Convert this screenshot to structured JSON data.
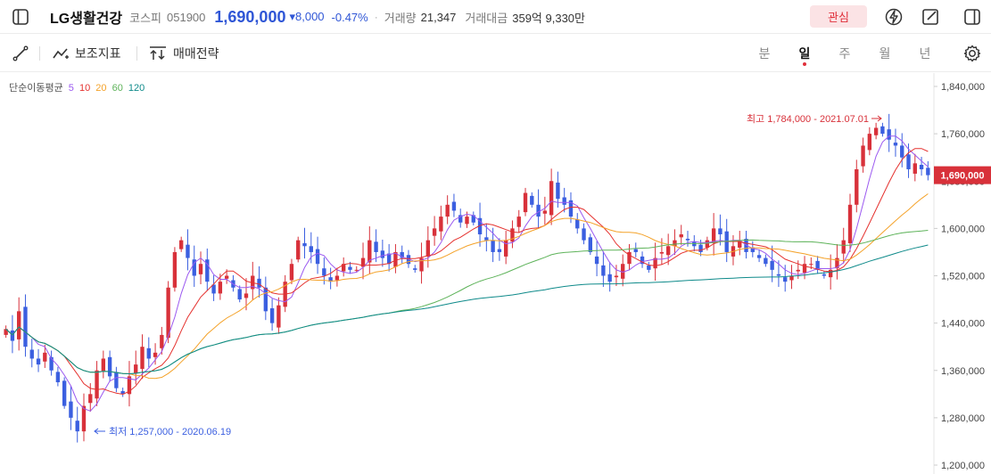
{
  "header": {
    "stock_name": "LG생활건강",
    "market": "코스피",
    "code": "051900",
    "price": "1,690,000",
    "change": "▾8,000",
    "change_pct": "-0.47%",
    "volume_label": "거래량",
    "volume_value": "21,347",
    "amount_label": "거래대금",
    "amount_value": "359억 9,330만",
    "favorite_label": "관심"
  },
  "toolbar": {
    "indicator_label": "보조지표",
    "strategy_label": "매매전략",
    "periods": [
      "분",
      "일",
      "주",
      "월",
      "년"
    ],
    "active_period": "일"
  },
  "ma_legend": {
    "title": "단순이동평균",
    "items": [
      {
        "label": "5",
        "color": "#9b59f0"
      },
      {
        "label": "10",
        "color": "#e5322f"
      },
      {
        "label": "20",
        "color": "#f4a229"
      },
      {
        "label": "60",
        "color": "#5eb35a"
      },
      {
        "label": "120",
        "color": "#0e8a8a"
      }
    ]
  },
  "colors": {
    "up": "#d8313a",
    "down": "#3b5fe0",
    "price": "#2f56d6"
  },
  "chart_data": {
    "type": "candlestick",
    "y_ticks": [
      "1,840,000",
      "1,760,000",
      "1,680,000",
      "1,600,000",
      "1,520,000",
      "1,440,000",
      "1,360,000",
      "1,280,000",
      "1,200,000"
    ],
    "ylim": [
      1200000,
      1840000
    ],
    "current_price_label": "1,690,000",
    "current_price": 1690000,
    "high_annotation": "최고 1,784,000 - 2021.07.01",
    "high": {
      "value": 1784000,
      "date": "2021.07.01"
    },
    "low_annotation": "최저 1,257,000 - 2020.06.19",
    "low": {
      "value": 1257000,
      "date": "2020.06.19"
    },
    "close": [
      1430000,
      1410000,
      1460000,
      1400000,
      1380000,
      1370000,
      1390000,
      1360000,
      1340000,
      1300000,
      1280000,
      1257000,
      1300000,
      1320000,
      1360000,
      1380000,
      1350000,
      1330000,
      1320000,
      1350000,
      1370000,
      1400000,
      1380000,
      1390000,
      1420000,
      1500000,
      1560000,
      1580000,
      1550000,
      1520000,
      1540000,
      1510000,
      1490000,
      1510000,
      1520000,
      1500000,
      1480000,
      1490000,
      1520000,
      1500000,
      1460000,
      1440000,
      1470000,
      1510000,
      1540000,
      1580000,
      1570000,
      1560000,
      1540000,
      1520000,
      1510000,
      1520000,
      1540000,
      1530000,
      1530000,
      1550000,
      1580000,
      1560000,
      1550000,
      1540000,
      1560000,
      1550000,
      1540000,
      1530000,
      1550000,
      1580000,
      1600000,
      1620000,
      1640000,
      1630000,
      1610000,
      1620000,
      1610000,
      1590000,
      1580000,
      1560000,
      1560000,
      1580000,
      1600000,
      1620000,
      1660000,
      1640000,
      1620000,
      1630000,
      1680000,
      1650000,
      1640000,
      1620000,
      1600000,
      1580000,
      1560000,
      1540000,
      1520000,
      1510000,
      1520000,
      1540000,
      1560000,
      1560000,
      1540000,
      1530000,
      1550000,
      1560000,
      1570000,
      1580000,
      1590000,
      1580000,
      1570000,
      1560000,
      1580000,
      1600000,
      1590000,
      1560000,
      1570000,
      1580000,
      1560000,
      1560000,
      1550000,
      1540000,
      1530000,
      1520000,
      1510000,
      1520000,
      1530000,
      1540000,
      1540000,
      1530000,
      1520000,
      1530000,
      1550000,
      1580000,
      1640000,
      1700000,
      1740000,
      1760000,
      1770000,
      1760000,
      1750000,
      1740000,
      1720000,
      1700000,
      1710000,
      1700000,
      1690000
    ]
  }
}
